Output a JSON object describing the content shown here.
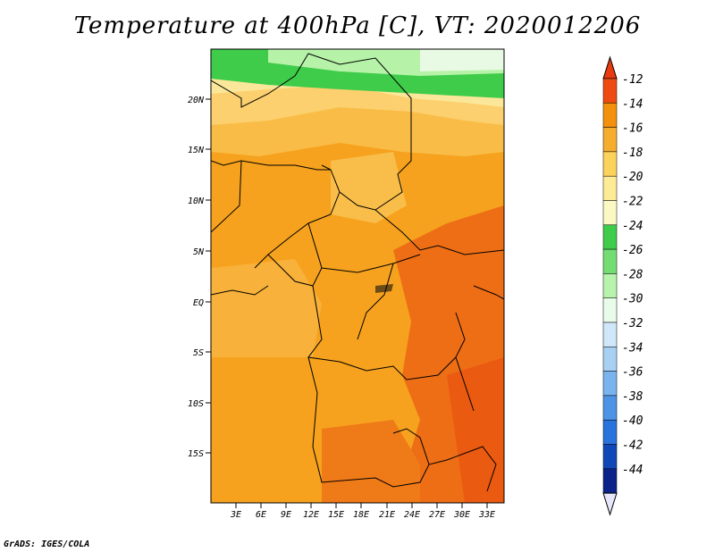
{
  "title": "Temperature at 400hPa [C], VT: 2020012206",
  "credit": "GrADS: IGES/COLA",
  "map": {
    "lat_labels": [
      "20N",
      "15N",
      "10N",
      "5N",
      "EQ",
      "5S",
      "10S",
      "15S"
    ],
    "lon_labels": [
      "3E",
      "6E",
      "9E",
      "12E",
      "15E",
      "18E",
      "21E",
      "24E",
      "27E",
      "30E",
      "33E"
    ],
    "fields": [
      {
        "name": "band-green-north",
        "color": "#3fcc4a"
      },
      {
        "name": "band-pale-green",
        "color": "#b6f3a8"
      },
      {
        "name": "band-yellow-21",
        "color": "#fbe79a"
      },
      {
        "name": "band-yellow-19",
        "color": "#fcd06e"
      },
      {
        "name": "band-orange-17",
        "color": "#f9b43a"
      },
      {
        "name": "band-orange-15",
        "color": "#f4a01c"
      },
      {
        "name": "band-orange-13",
        "color": "#ef6f16"
      }
    ]
  },
  "colorbar": {
    "labels": [
      "-12",
      "-14",
      "-16",
      "-18",
      "-20",
      "-22",
      "-24",
      "-26",
      "-28",
      "-30",
      "-32",
      "-34",
      "-36",
      "-38",
      "-40",
      "-42",
      "-44"
    ],
    "colors": [
      "#ee4b12",
      "#f3900d",
      "#f6ad2d",
      "#fbd25b",
      "#fdeb96",
      "#fcf8c4",
      "#3fcc4a",
      "#73dd73",
      "#b8f3ad",
      "#e9fbe9",
      "#cfe7f8",
      "#a7d0f3",
      "#7ab4ee",
      "#4e94e6",
      "#2a72dc",
      "#1048b8",
      "#0b2288"
    ],
    "top_triangle": "#e93a10",
    "bottom_triangle": "#e6e6fb"
  }
}
